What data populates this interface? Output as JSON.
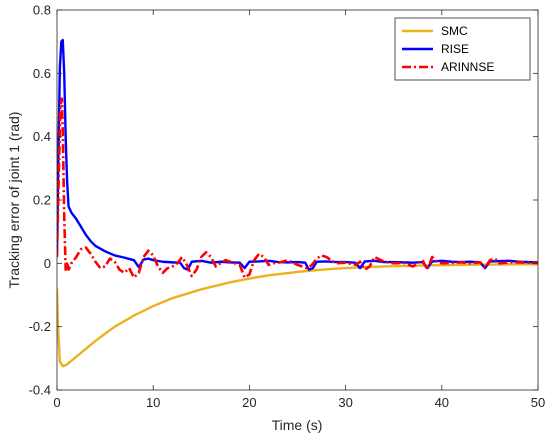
{
  "chart_data": {
    "type": "line",
    "xlabel": "Time (s)",
    "ylabel": "Tracking error of joint 1 (rad)",
    "xlim": [
      0,
      50
    ],
    "ylim": [
      -0.4,
      0.8
    ],
    "xticks": [
      0,
      10,
      20,
      30,
      40,
      50
    ],
    "yticks": [
      -0.4,
      -0.2,
      0,
      0.2,
      0.4,
      0.6,
      0.8
    ],
    "xtick_labels": [
      "0",
      "10",
      "20",
      "30",
      "40",
      "50"
    ],
    "ytick_labels": [
      "-0.4",
      "-0.2",
      "0",
      "0.2",
      "0.4",
      "0.6",
      "0.8"
    ],
    "grid": false,
    "legend_position": "top-right",
    "series": [
      {
        "name": "SMC",
        "color": "#EDB120",
        "style": "solid",
        "x": [
          0,
          0.1,
          0.3,
          0.6,
          1,
          2,
          3,
          4,
          5,
          6,
          8,
          10,
          12,
          15,
          18,
          20,
          22,
          25,
          28,
          30,
          32,
          35,
          38,
          40,
          42,
          45,
          48,
          50
        ],
        "y": [
          -0.08,
          -0.2,
          -0.31,
          -0.325,
          -0.32,
          -0.295,
          -0.27,
          -0.245,
          -0.222,
          -0.2,
          -0.165,
          -0.135,
          -0.11,
          -0.082,
          -0.06,
          -0.048,
          -0.038,
          -0.027,
          -0.019,
          -0.015,
          -0.012,
          -0.009,
          -0.007,
          -0.006,
          -0.005,
          -0.004,
          -0.003,
          -0.003
        ]
      },
      {
        "name": "RISE",
        "color": "#0000FF",
        "style": "solid",
        "x": [
          0,
          0.15,
          0.3,
          0.45,
          0.6,
          0.75,
          0.9,
          1.05,
          1.2,
          1.5,
          2,
          2.5,
          3,
          3.5,
          4,
          5,
          6,
          7,
          8,
          8.5,
          9,
          9.5,
          10,
          11,
          12,
          12.8,
          13.2,
          13.6,
          14,
          15,
          16,
          17,
          18,
          19,
          19.5,
          20,
          21,
          22,
          23,
          24,
          25,
          25.8,
          26.2,
          26.6,
          27,
          28,
          29,
          30,
          31,
          31.5,
          32,
          33,
          34,
          35,
          36,
          37,
          38,
          38.5,
          39,
          40,
          41,
          42,
          43,
          44,
          44.5,
          45,
          46,
          47,
          48,
          49,
          50
        ],
        "y": [
          0.03,
          0.35,
          0.62,
          0.7,
          0.705,
          0.6,
          0.4,
          0.26,
          0.18,
          0.16,
          0.14,
          0.115,
          0.09,
          0.07,
          0.055,
          0.038,
          0.025,
          0.018,
          0.01,
          -0.012,
          0.012,
          0.015,
          0.01,
          0.005,
          0.003,
          0.002,
          -0.015,
          -0.02,
          0.005,
          0.008,
          0.002,
          0.005,
          0.003,
          0.002,
          -0.015,
          0.005,
          0.006,
          0.008,
          0.004,
          0.003,
          0.004,
          0.002,
          -0.02,
          -0.015,
          0.005,
          0.006,
          0.004,
          0.004,
          0.002,
          -0.015,
          0.006,
          0.008,
          0.004,
          0.004,
          0.003,
          0.002,
          0.004,
          -0.015,
          0.006,
          0.008,
          0.005,
          0.004,
          0.005,
          0.003,
          -0.015,
          0.006,
          0.007,
          0.008,
          0.005,
          0.004,
          0.003
        ]
      },
      {
        "name": "ARINNSE",
        "color": "#FF0000",
        "style": "dashdot",
        "x": [
          0,
          0.2,
          0.35,
          0.5,
          0.6,
          0.75,
          0.9,
          1.05,
          1.2,
          1.5,
          2,
          2.5,
          3,
          3.5,
          4,
          4.5,
          5,
          5.5,
          6,
          6.5,
          7,
          7.5,
          8,
          8.5,
          9,
          9.5,
          10,
          10.5,
          11,
          11.5,
          12,
          12.5,
          13,
          13.5,
          14,
          14.5,
          15,
          15.5,
          16,
          16.5,
          17,
          17.5,
          18,
          18.5,
          19,
          19.5,
          20,
          20.5,
          21,
          21.5,
          22,
          22.5,
          23,
          24,
          25,
          26,
          26.5,
          27,
          27.5,
          28,
          29,
          30,
          31,
          31.5,
          32,
          32.5,
          33,
          34,
          35,
          36,
          37,
          38,
          38.5,
          39,
          39.5,
          40,
          41,
          42,
          43,
          44,
          44.5,
          45,
          45.5,
          46,
          47,
          48,
          49,
          50
        ],
        "y": [
          0.02,
          0.3,
          0.5,
          0.52,
          0.42,
          0.15,
          -0.02,
          0.005,
          -0.02,
          0.0,
          0.02,
          0.045,
          0.05,
          0.03,
          0.005,
          -0.015,
          -0.01,
          0.015,
          0.005,
          -0.02,
          -0.03,
          -0.015,
          -0.045,
          -0.03,
          0.02,
          0.04,
          0.025,
          -0.01,
          -0.03,
          -0.015,
          -0.01,
          0.0,
          0.02,
          -0.005,
          -0.04,
          -0.02,
          0.02,
          0.035,
          0.02,
          -0.01,
          0.0,
          0.01,
          0.005,
          0.0,
          -0.005,
          -0.045,
          -0.035,
          0.01,
          0.03,
          0.02,
          -0.005,
          0.0,
          0.002,
          0.01,
          -0.005,
          -0.015,
          -0.005,
          0.015,
          0.025,
          0.02,
          0.0,
          0.002,
          -0.005,
          0.005,
          -0.02,
          -0.01,
          0.02,
          0.005,
          0.0,
          0.002,
          -0.01,
          0.01,
          -0.02,
          0.02,
          0.005,
          0.0,
          0.001,
          0.003,
          0.0,
          0.003,
          -0.015,
          0.01,
          0.015,
          0.0,
          0.003,
          0.003,
          0.002,
          0.001
        ]
      }
    ]
  }
}
